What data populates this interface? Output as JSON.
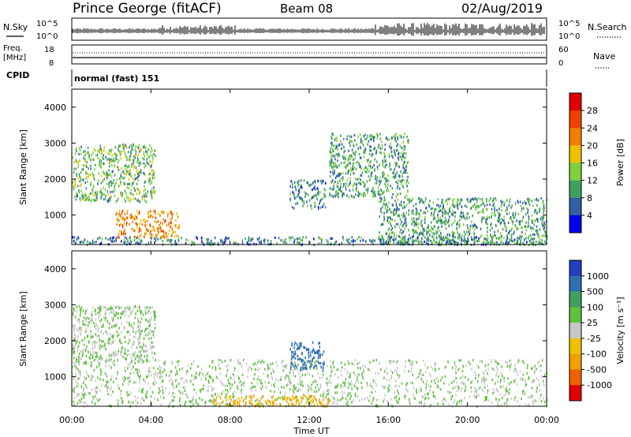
{
  "header": {
    "station": "Prince George (fitACF)",
    "beam": "Beam 08",
    "date": "02/Aug/2019"
  },
  "info_panels": {
    "nsky_label": "N.Sky",
    "nsearch_label": "N.Search",
    "nsky_ticks": [
      "10^5",
      "10^0"
    ],
    "nsearch_ticks": [
      "10^5",
      "10^0"
    ],
    "freq_label": [
      "Freq.",
      "[MHz]"
    ],
    "freq_ticks": [
      "18",
      "8"
    ],
    "nave_label": "Nave",
    "nave_ticks": [
      "60",
      "0"
    ],
    "cpid_label": "CPID",
    "cpid_text": "normal (fast) 151"
  },
  "colorbars": {
    "power": {
      "label": "Power [dB]",
      "ticks": [
        "28",
        "24",
        "20",
        "16",
        "12",
        "8",
        "4"
      ],
      "colors": [
        "#e00000",
        "#f04000",
        "#f08000",
        "#f0c000",
        "#80d040",
        "#40a060",
        "#3060a0",
        "#0000ee"
      ]
    },
    "velocity": {
      "label": "Velocity  [m s⁻¹]",
      "ticks": [
        "1000",
        "500",
        "100",
        "25",
        "-25",
        "-100",
        "-500",
        "-1000"
      ],
      "colors": [
        "#2040c0",
        "#3070b0",
        "#40a060",
        "#60c040",
        "#c8c8c8",
        "#f0c000",
        "#f0a000",
        "#f06000",
        "#e00000"
      ]
    }
  },
  "chart_data": [
    {
      "type": "heatmap",
      "title": "Power",
      "xlabel": "Time UT",
      "ylabel": "Slant Range [km]",
      "x_ticks": [
        "00:00",
        "04:00",
        "08:00",
        "12:00",
        "16:00",
        "20:00",
        "00:00"
      ],
      "y_ticks": [
        1000,
        2000,
        3000,
        4000
      ],
      "xlim": [
        0,
        24
      ],
      "ylim": [
        180,
        4500
      ],
      "colorbar_label": "Power [dB]",
      "colorbar_ticks": [
        4,
        8,
        12,
        16,
        20,
        24,
        28
      ],
      "features": [
        {
          "name": "band-low",
          "t0": 0.0,
          "t1": 24.0,
          "r0": 200,
          "r1": 420,
          "level": 10
        },
        {
          "name": "strong-0400",
          "t0": 2.2,
          "t1": 5.4,
          "r0": 400,
          "r1": 1150,
          "level": 24
        },
        {
          "name": "arc-early",
          "t0": 0.0,
          "t1": 4.2,
          "r0": 1400,
          "r1": 3000,
          "level": 14
        },
        {
          "name": "arc-1200",
          "t0": 11.0,
          "t1": 12.8,
          "r0": 1200,
          "r1": 2000,
          "level": 10
        },
        {
          "name": "arc-1300",
          "t0": 13.0,
          "t1": 17.0,
          "r0": 1500,
          "r1": 3300,
          "level": 12
        },
        {
          "name": "streaks-late",
          "t0": 15.5,
          "t1": 24.0,
          "r0": 200,
          "r1": 1500,
          "level": 12
        }
      ]
    },
    {
      "type": "heatmap",
      "title": "Velocity",
      "xlabel": "Time UT",
      "ylabel": "Slant Range [km]",
      "x_ticks": [
        "00:00",
        "04:00",
        "08:00",
        "12:00",
        "16:00",
        "20:00",
        "00:00"
      ],
      "y_ticks": [
        1000,
        2000,
        3000,
        4000
      ],
      "xlim": [
        0,
        24
      ],
      "ylim": [
        180,
        4500
      ],
      "colorbar_label": "Velocity [m s-1]",
      "colorbar_ticks": [
        -1000,
        -500,
        -100,
        -25,
        25,
        100,
        500,
        1000
      ],
      "features": [
        {
          "name": "ground-scatter",
          "t0": 0.0,
          "t1": 24.0,
          "r0": 200,
          "r1": 1500,
          "level": 0
        },
        {
          "name": "arc-early-gs",
          "t0": 0.0,
          "t1": 4.2,
          "r0": 1400,
          "r1": 3000,
          "level": 0
        },
        {
          "name": "arc-1200-pos",
          "t0": 11.0,
          "t1": 12.8,
          "r0": 1200,
          "r1": 2000,
          "level": 200
        },
        {
          "name": "neg-0800-1300",
          "t0": 7.0,
          "t1": 13.0,
          "r0": 200,
          "r1": 500,
          "level": -100
        }
      ]
    }
  ]
}
